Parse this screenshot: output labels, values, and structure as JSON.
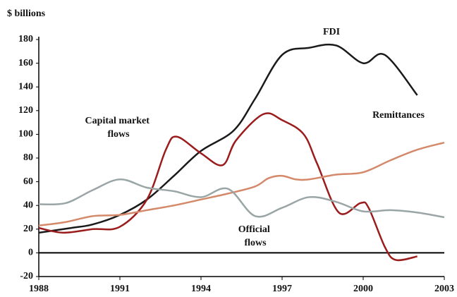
{
  "chart_data": {
    "type": "line",
    "y_axis_label": "$ billions",
    "xlim": [
      1988,
      2003
    ],
    "xticks": [
      1988,
      1991,
      1994,
      1997,
      2000,
      2003
    ],
    "ylim": [
      -20,
      180
    ],
    "yticks": [
      -20,
      0,
      20,
      40,
      60,
      80,
      100,
      120,
      140,
      160,
      180
    ],
    "series": [
      {
        "name": "FDI",
        "color": "#1a1a1a",
        "x": [
          1988,
          1989.2,
          1990,
          1991,
          1992,
          1993,
          1994,
          1995.2,
          1996,
          1997,
          1998,
          1999,
          2000,
          2000.8,
          2002
        ],
        "values": [
          17,
          21,
          24,
          32,
          45,
          65,
          86,
          103,
          130,
          167,
          173,
          175,
          160,
          167,
          133
        ]
      },
      {
        "name": "Capital market flows",
        "color": "#9b1c1c",
        "x": [
          1988,
          1988.9,
          1990,
          1991,
          1992,
          1992.7,
          1993.1,
          1994,
          1994.8,
          1995.3,
          1996.3,
          1997,
          1997.8,
          1998.3,
          1999.1,
          1999.9,
          2000.2,
          2000.8,
          2001.2,
          2002
        ],
        "values": [
          21,
          17,
          20,
          22,
          45,
          87,
          98,
          84,
          74,
          95,
          117,
          112,
          100,
          75,
          34,
          42,
          38,
          5,
          -6,
          -3
        ]
      },
      {
        "name": "Remittances",
        "color": "#d4896a",
        "x": [
          1988,
          1989,
          1990,
          1991,
          1992,
          1993,
          1994,
          1995,
          1996,
          1996.5,
          1997,
          1997.5,
          1998,
          1999,
          2000,
          2001,
          2002,
          2003
        ],
        "values": [
          23,
          26,
          31,
          32,
          36,
          40,
          45,
          50,
          56,
          63,
          65,
          62,
          62,
          66,
          68,
          78,
          87,
          93
        ]
      },
      {
        "name": "Official flows",
        "color": "#9aa5a5",
        "x": [
          1988,
          1989,
          1990,
          1991,
          1992,
          1993,
          1994,
          1995,
          1996,
          1997,
          1998,
          1999,
          2000,
          2001,
          2002,
          2003
        ],
        "values": [
          41,
          42,
          53,
          62,
          55,
          52,
          47,
          54,
          31,
          38,
          47,
          43,
          35,
          36,
          34,
          30
        ]
      }
    ]
  }
}
